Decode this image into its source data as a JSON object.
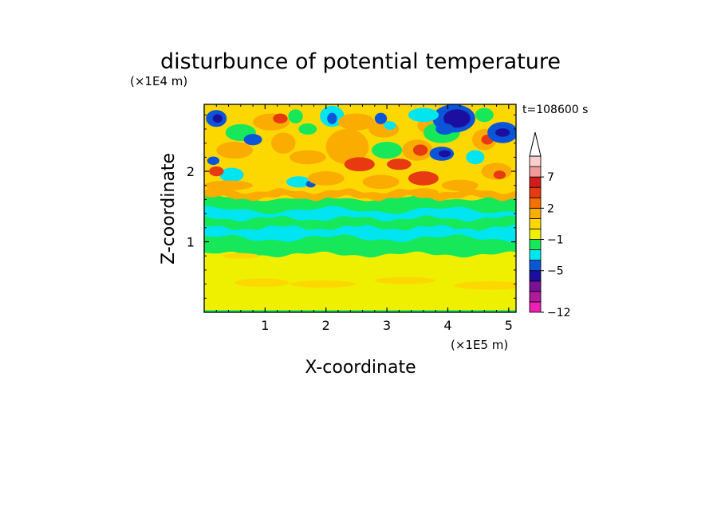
{
  "chart_data": {
    "type": "heatmap",
    "title": "disturbunce of potential temperature",
    "time_label": "t=108600 s",
    "xlabel": "X-coordinate",
    "ylabel": "Z-coordinate",
    "x_scale_note": "(×1E5 m)",
    "y_scale_note": "(×1E4 m)",
    "xlim": [
      0,
      5.12
    ],
    "ylim": [
      0,
      2.95
    ],
    "x_ticks": [
      1,
      2,
      3,
      4,
      5
    ],
    "x_tick_labels": [
      "1",
      "2",
      "3",
      "4",
      "5"
    ],
    "y_ticks": [
      1,
      2
    ],
    "y_tick_labels": [
      "1",
      "2"
    ],
    "colorbar": {
      "colors": [
        "#ee1fb4",
        "#b01a9c",
        "#7a0f98",
        "#1c0fa0",
        "#0a55d8",
        "#00e5f0",
        "#17e85a",
        "#eef000",
        "#fdd800",
        "#fbac00",
        "#f47000",
        "#e83a10",
        "#d31b1b",
        "#f09a9a",
        "#f8cece"
      ],
      "tick_labels": [
        "7",
        "2",
        "−1",
        "−5",
        "−12"
      ],
      "extend_top": true
    },
    "layers": [
      {
        "level": "yellow",
        "color": "#eef000",
        "description": "lower atmosphere background 0–0.9"
      },
      {
        "level": "orange-light",
        "color": "#fdd800"
      },
      {
        "level": "green",
        "color": "#17e85a",
        "band": [
          0.85,
          1.0
        ]
      },
      {
        "level": "cyan",
        "color": "#00e5f0",
        "band": [
          1.05,
          1.35
        ]
      },
      {
        "level": "green-upper",
        "color": "#17e85a",
        "band": [
          1.35,
          1.6
        ]
      }
    ]
  }
}
